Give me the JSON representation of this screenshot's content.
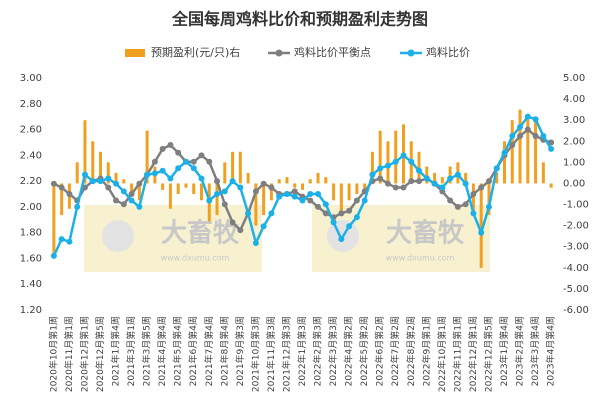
{
  "chart_data": {
    "type": "bar-line",
    "title": "全国每周鸡料比价和预期盈利走势图",
    "watermark": {
      "brand": "大畜牧",
      "site": "www.dxumu.com"
    },
    "categories": [
      "2020年10月第1周",
      null,
      "2020年11月第1周",
      null,
      "2020年12月第1周",
      null,
      "2020年12月第5周",
      null,
      "2021年1月第4周",
      null,
      "2021年3月第1周",
      null,
      "2021年3月第5周",
      null,
      "2021年4月第4周",
      null,
      "2021年5月第4周",
      null,
      "2021年6月第4周",
      null,
      "2021年7月第4周",
      null,
      "2021年8月第4周",
      null,
      "2021年9月第3周",
      null,
      "2021年10月第3周",
      null,
      "2021年11月第3周",
      null,
      "2021年12月第3周",
      null,
      "2022年1月第3周",
      null,
      "2022年2月第3周",
      null,
      "2022年3月第3周",
      null,
      "2022年4月第2周",
      null,
      "2022年5月第2周",
      null,
      "2022年6月第2周",
      null,
      "2022年7月第2周",
      null,
      "2022年8月第2周",
      null,
      "2022年9月第1周",
      null,
      "2022年10月第1周",
      null,
      "2022年11月第1周",
      null,
      "2022年12月第1周",
      null,
      "2022年12月第5周",
      null,
      "2023年1月第4周",
      null,
      "2023年2月第4周",
      null,
      "2023年3月第4周",
      null,
      "2023年4月第4周"
    ],
    "series": [
      {
        "name": "预期盈利(元/只)右",
        "kind": "bar",
        "axis": "y2",
        "color": "#f0a020",
        "values": [
          -3.5,
          -1.5,
          -1.2,
          1.0,
          3.0,
          2.0,
          1.5,
          1.0,
          0.5,
          0.2,
          -0.5,
          -0.8,
          2.5,
          0.8,
          -0.3,
          -1.2,
          -0.5,
          -0.2,
          -0.5,
          -0.8,
          -1.8,
          -1.5,
          1.0,
          1.5,
          1.5,
          0.5,
          -2.0,
          -1.5,
          -0.8,
          0.2,
          0.3,
          -0.2,
          -0.3,
          0.2,
          0.5,
          0.3,
          -0.8,
          -1.5,
          -0.8,
          -0.5,
          -0.3,
          1.5,
          2.5,
          2.0,
          2.5,
          2.8,
          2.0,
          1.5,
          0.8,
          0.5,
          0.3,
          0.8,
          1.0,
          0.5,
          -1.5,
          -4.0,
          -1.5,
          0.5,
          2.0,
          3.0,
          3.5,
          3.2,
          3.0,
          1.0,
          -0.2
        ]
      },
      {
        "name": "鸡料比价平衡点",
        "kind": "line",
        "color": "#7f7f7f",
        "values": [
          2.18,
          2.15,
          2.1,
          2.05,
          2.15,
          2.2,
          2.22,
          2.15,
          2.05,
          2.02,
          2.1,
          2.18,
          2.25,
          2.35,
          2.45,
          2.48,
          2.42,
          2.35,
          2.35,
          2.4,
          2.35,
          2.2,
          2.02,
          1.88,
          1.82,
          1.95,
          2.12,
          2.18,
          2.15,
          2.1,
          2.1,
          2.12,
          2.08,
          2.05,
          2.0,
          1.95,
          1.92,
          1.95,
          1.97,
          2.05,
          2.12,
          2.2,
          2.22,
          2.18,
          2.15,
          2.15,
          2.2,
          2.2,
          2.22,
          2.18,
          2.12,
          2.05,
          2.0,
          2.02,
          2.1,
          2.15,
          2.2,
          2.3,
          2.4,
          2.48,
          2.55,
          2.6,
          2.55,
          2.52,
          2.5
        ]
      },
      {
        "name": "鸡料比价",
        "kind": "line",
        "color": "#1cb0e8",
        "values": [
          1.62,
          1.75,
          1.73,
          2.0,
          2.25,
          2.2,
          2.2,
          2.22,
          2.18,
          2.12,
          2.05,
          2.0,
          2.25,
          2.26,
          2.28,
          2.22,
          2.3,
          2.35,
          2.3,
          2.22,
          2.05,
          2.1,
          2.12,
          2.2,
          2.15,
          1.95,
          1.72,
          1.85,
          1.95,
          2.08,
          2.1,
          2.08,
          2.05,
          2.1,
          2.1,
          2.02,
          1.88,
          1.75,
          1.85,
          1.92,
          2.05,
          2.25,
          2.3,
          2.32,
          2.35,
          2.4,
          2.35,
          2.28,
          2.22,
          2.18,
          2.15,
          2.22,
          2.25,
          2.18,
          1.95,
          1.8,
          2.0,
          2.3,
          2.42,
          2.55,
          2.62,
          2.7,
          2.68,
          2.55,
          2.45
        ]
      }
    ],
    "ylim": [
      1.2,
      3.0
    ],
    "yticks": [
      {
        "value": 1.2,
        "label": "1.20"
      },
      {
        "value": 1.4,
        "label": "1.40"
      },
      {
        "value": 1.6,
        "label": "1.60"
      },
      {
        "value": 1.8,
        "label": "1.80"
      },
      {
        "value": 2.0,
        "label": "2.00"
      },
      {
        "value": 2.2,
        "label": "2.20"
      },
      {
        "value": 2.4,
        "label": "2.40"
      },
      {
        "value": 2.6,
        "label": "2.60"
      },
      {
        "value": 2.8,
        "label": "2.80"
      },
      {
        "value": 3.0,
        "label": "3.00"
      }
    ],
    "y2lim": [
      -6,
      5
    ],
    "y2ticks": [
      {
        "value": -6,
        "label": "-6.00"
      },
      {
        "value": -5,
        "label": "-5.00"
      },
      {
        "value": -4,
        "label": "-4.00"
      },
      {
        "value": -3,
        "label": "-3.00"
      },
      {
        "value": -2,
        "label": "-2.00"
      },
      {
        "value": -1,
        "label": "-1.00"
      },
      {
        "value": 0,
        "label": "0.00"
      },
      {
        "value": 1,
        "label": "1.00"
      },
      {
        "value": 2,
        "label": "2.00"
      },
      {
        "value": 3,
        "label": "3.00"
      },
      {
        "value": 4,
        "label": "4.00"
      },
      {
        "value": 5,
        "label": "5.00"
      }
    ]
  }
}
